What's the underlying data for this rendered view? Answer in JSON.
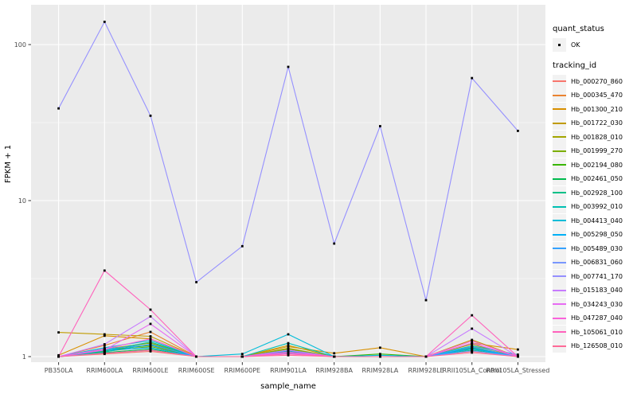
{
  "chart_data": {
    "type": "line",
    "title": "",
    "xlabel": "sample_name",
    "ylabel": "FPKM + 1",
    "y_scale": "log10",
    "ylim": [
      0.92,
      155
    ],
    "y_ticks": [
      1,
      10,
      100
    ],
    "y_tick_labels": [
      "1",
      "10",
      "100"
    ],
    "y_minor_ticks": [
      3.162,
      31.62
    ],
    "grid": true,
    "panel_bg": "#EBEBEB",
    "grid_color": "#FFFFFF",
    "point_color": "#000000",
    "legend_position": "right",
    "categories": [
      "PB350LA",
      "RRIM600LA",
      "RRIM600LE",
      "RRIM600SE",
      "RRIM600PE",
      "RRIM901LA",
      "RRIM928BA",
      "RRIM928LA",
      "RRIM928LE",
      "RRII105LA_Control",
      "RRII105LA_Stressed"
    ],
    "series": [
      {
        "name": "Hb_000270_860",
        "color": "#F8766D",
        "values": [
          1.0,
          1.04,
          1.08,
          1.0,
          1.0,
          1.04,
          1.0,
          1.0,
          1.0,
          1.08,
          1.0
        ]
      },
      {
        "name": "Hb_000345_470",
        "color": "#EA8331",
        "values": [
          1.0,
          1.18,
          1.44,
          1.0,
          1.0,
          1.1,
          1.0,
          1.0,
          1.0,
          1.16,
          1.0
        ]
      },
      {
        "name": "Hb_001300_210",
        "color": "#D89000",
        "values": [
          1.02,
          1.36,
          1.3,
          1.0,
          1.0,
          1.16,
          1.05,
          1.14,
          1.0,
          1.22,
          1.11
        ]
      },
      {
        "name": "Hb_001722_030",
        "color": "#C09B00",
        "values": [
          1.43,
          1.39,
          1.35,
          1.0,
          1.0,
          1.18,
          1.0,
          1.0,
          1.0,
          1.28,
          1.0
        ]
      },
      {
        "name": "Hb_001828_010",
        "color": "#A3A500",
        "values": [
          1.0,
          1.12,
          1.22,
          1.0,
          1.0,
          1.13,
          1.0,
          1.0,
          1.0,
          1.2,
          1.0
        ]
      },
      {
        "name": "Hb_001999_270",
        "color": "#7CAE00",
        "values": [
          1.0,
          1.08,
          1.16,
          1.0,
          1.0,
          1.12,
          1.0,
          1.0,
          1.0,
          1.15,
          1.0
        ]
      },
      {
        "name": "Hb_002194_080",
        "color": "#39B600",
        "values": [
          1.0,
          1.1,
          1.18,
          1.0,
          1.0,
          1.08,
          1.0,
          1.04,
          1.0,
          1.13,
          1.0
        ]
      },
      {
        "name": "Hb_002461_050",
        "color": "#00BB4E",
        "values": [
          1.0,
          1.06,
          1.12,
          1.0,
          1.0,
          1.06,
          1.0,
          1.0,
          1.0,
          1.1,
          1.0
        ]
      },
      {
        "name": "Hb_002928_100",
        "color": "#00C087",
        "values": [
          1.0,
          1.09,
          1.24,
          1.0,
          1.0,
          1.1,
          1.0,
          1.0,
          1.0,
          1.14,
          1.0
        ]
      },
      {
        "name": "Hb_003992_010",
        "color": "#00C0B2",
        "values": [
          1.0,
          1.07,
          1.2,
          1.0,
          1.0,
          1.22,
          1.0,
          1.0,
          1.0,
          1.12,
          1.0
        ]
      },
      {
        "name": "Hb_004413_040",
        "color": "#00BCD8",
        "values": [
          1.0,
          1.14,
          1.27,
          1.0,
          1.04,
          1.39,
          1.0,
          1.02,
          1.0,
          1.17,
          1.03
        ]
      },
      {
        "name": "Hb_005298_050",
        "color": "#00B0F6",
        "values": [
          1.0,
          1.1,
          1.14,
          1.0,
          1.0,
          1.09,
          1.0,
          1.0,
          1.0,
          1.12,
          1.0
        ]
      },
      {
        "name": "Hb_005489_030",
        "color": "#35A2FF",
        "values": [
          1.0,
          1.12,
          1.19,
          1.0,
          1.0,
          1.07,
          1.0,
          1.0,
          1.0,
          1.15,
          1.0
        ]
      },
      {
        "name": "Hb_006831_060",
        "color": "#7997FF",
        "values": [
          1.0,
          1.05,
          1.1,
          1.0,
          1.0,
          1.05,
          1.0,
          1.0,
          1.0,
          1.09,
          1.0
        ]
      },
      {
        "name": "Hb_007741_170",
        "color": "#9590FF",
        "values": [
          39,
          140,
          35,
          3.0,
          5.1,
          72,
          5.3,
          30,
          2.3,
          61,
          28
        ]
      },
      {
        "name": "Hb_015183_040",
        "color": "#C77CFF",
        "values": [
          1.0,
          1.2,
          1.81,
          1.0,
          1.0,
          1.1,
          1.0,
          1.0,
          1.0,
          1.51,
          1.0
        ]
      },
      {
        "name": "Hb_034243_030",
        "color": "#E76BF3",
        "values": [
          1.0,
          1.1,
          1.62,
          1.0,
          1.0,
          1.05,
          1.0,
          1.0,
          1.0,
          1.22,
          1.0
        ]
      },
      {
        "name": "Hb_047287_040",
        "color": "#FA62DB",
        "values": [
          1.0,
          1.12,
          1.3,
          1.0,
          1.0,
          1.07,
          1.0,
          1.0,
          1.0,
          1.26,
          1.0
        ]
      },
      {
        "name": "Hb_105061_010",
        "color": "#FF62BC",
        "values": [
          1.0,
          3.56,
          2.0,
          1.0,
          1.0,
          1.04,
          1.0,
          1.0,
          1.0,
          1.84,
          1.0
        ]
      },
      {
        "name": "Hb_126508_010",
        "color": "#FF6A98",
        "values": [
          1.0,
          1.05,
          1.1,
          1.0,
          1.0,
          1.02,
          1.0,
          1.0,
          1.0,
          1.06,
          1.0
        ]
      }
    ],
    "legend": {
      "quant_status_title": "quant_status",
      "quant_status_items": [
        {
          "label": "OK",
          "symbol": "point",
          "color": "#000000"
        }
      ],
      "tracking_id_title": "tracking_id"
    }
  }
}
